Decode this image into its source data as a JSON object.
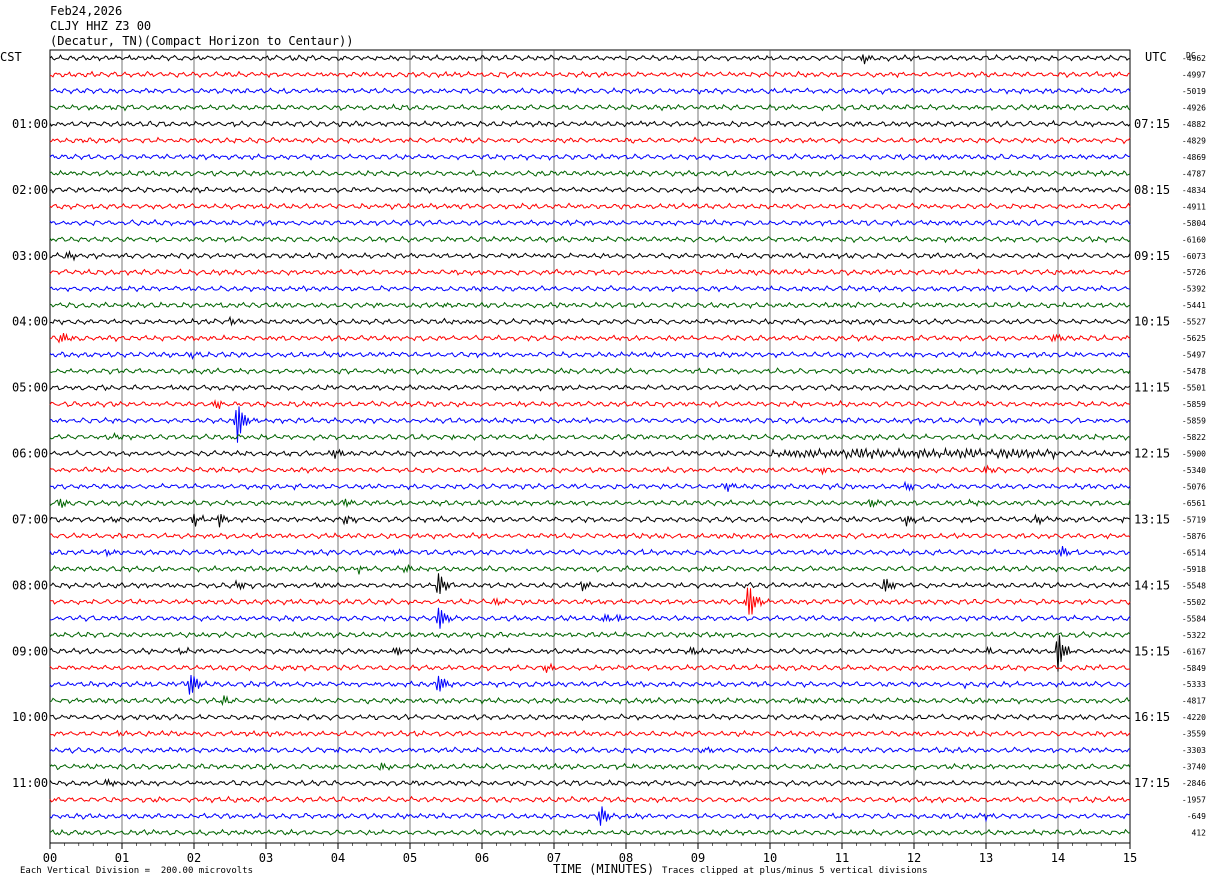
{
  "header": {
    "date": "Feb24,2026",
    "station": "CLJY HHZ Z3 00",
    "location": "(Decatur, TN)(Compact Horizon to Centaur))"
  },
  "chart_data": {
    "type": "line",
    "left_label": "CST",
    "right_label": "UTC",
    "dc_label": "DC",
    "left_times": [
      "01:00",
      "02:00",
      "03:00",
      "04:00",
      "05:00",
      "06:00",
      "07:00",
      "08:00",
      "09:00",
      "10:00",
      "11:00"
    ],
    "right_times": [
      "07:15",
      "08:15",
      "09:15",
      "10:15",
      "11:15",
      "12:15",
      "13:15",
      "14:15",
      "15:15",
      "16:15",
      "17:15"
    ],
    "x_ticks": [
      "00",
      "01",
      "02",
      "03",
      "04",
      "05",
      "06",
      "07",
      "08",
      "09",
      "10",
      "11",
      "12",
      "13",
      "14",
      "15"
    ],
    "xlabel": "TIME (MINUTES)",
    "xlim": [
      0,
      15
    ],
    "trace_colors": [
      "#000000",
      "#ff0000",
      "#0000ff",
      "#006400"
    ],
    "dc_offsets": [
      "-4962",
      "-4997",
      "-5019",
      "-4926",
      "-4882",
      "-4829",
      "-4869",
      "-4787",
      "-4834",
      "-4911",
      "-5804",
      "-6160",
      "-6073",
      "-5726",
      "-5392",
      "-5441",
      "-5527",
      "-5625",
      "-5497",
      "-5478",
      "-5501",
      "-5859",
      "-5859",
      "-5822",
      "-5900",
      "-5340",
      "-5076",
      "-6561",
      "-5719",
      "-5876",
      "-6514",
      "-5918",
      "-5548",
      "-5502",
      "-5584",
      "-5322",
      "-6167",
      "-5849",
      "-5333",
      "-4817",
      "-4220",
      "-3559",
      "-3303",
      "-3740",
      "-2846",
      "-1957",
      "-649",
      "412"
    ],
    "events": [
      {
        "trace": 0,
        "minute": 11.3,
        "amp": 5
      },
      {
        "trace": 0,
        "minute": 8.0,
        "amp": 4
      },
      {
        "trace": 12,
        "minute": 0.25,
        "amp": 5
      },
      {
        "trace": 15,
        "minute": 5.5,
        "amp": 5
      },
      {
        "trace": 16,
        "minute": 2.5,
        "amp": 4
      },
      {
        "trace": 17,
        "minute": 0.15,
        "amp": 7
      },
      {
        "trace": 17,
        "minute": 13.95,
        "amp": 5
      },
      {
        "trace": 18,
        "minute": 1.95,
        "amp": 4
      },
      {
        "trace": 21,
        "minute": 2.3,
        "amp": 5
      },
      {
        "trace": 21,
        "minute": 5.7,
        "amp": 4
      },
      {
        "trace": 21,
        "minute": 10.4,
        "amp": 5
      },
      {
        "trace": 22,
        "minute": 2.6,
        "amp": 24
      },
      {
        "trace": 22,
        "minute": 12.9,
        "amp": 5
      },
      {
        "trace": 23,
        "minute": 0.9,
        "amp": 5
      },
      {
        "trace": 23,
        "minute": 5.6,
        "amp": 5
      },
      {
        "trace": 23,
        "minute": 14.5,
        "amp": 5
      },
      {
        "trace": 24,
        "minute": 3.5,
        "amp": 5
      },
      {
        "trace": 24,
        "minute": 3.95,
        "amp": 10
      },
      {
        "trace": 25,
        "minute": 5.9,
        "amp": 6
      },
      {
        "trace": 25,
        "minute": 10.7,
        "amp": 7
      },
      {
        "trace": 25,
        "minute": 13.0,
        "amp": 6
      },
      {
        "trace": 26,
        "minute": 3.4,
        "amp": 5
      },
      {
        "trace": 26,
        "minute": 9.4,
        "amp": 5
      },
      {
        "trace": 26,
        "minute": 11.9,
        "amp": 5
      },
      {
        "trace": 27,
        "minute": 0.15,
        "amp": 6
      },
      {
        "trace": 27,
        "minute": 4.1,
        "amp": 6
      },
      {
        "trace": 27,
        "minute": 11.4,
        "amp": 5
      },
      {
        "trace": 27,
        "minute": 12.8,
        "amp": 5
      },
      {
        "trace": 27,
        "minute": 15.0,
        "amp": 6
      },
      {
        "trace": 28,
        "minute": 0.9,
        "amp": 6
      },
      {
        "trace": 28,
        "minute": 2.0,
        "amp": 7
      },
      {
        "trace": 28,
        "minute": 2.35,
        "amp": 7
      },
      {
        "trace": 28,
        "minute": 4.1,
        "amp": 7
      },
      {
        "trace": 28,
        "minute": 5.8,
        "amp": 6
      },
      {
        "trace": 28,
        "minute": 11.9,
        "amp": 8
      },
      {
        "trace": 28,
        "minute": 12.7,
        "amp": 7
      },
      {
        "trace": 28,
        "minute": 13.7,
        "amp": 6
      },
      {
        "trace": 28,
        "minute": 14.9,
        "amp": 6
      },
      {
        "trace": 29,
        "minute": 5.9,
        "amp": 4
      },
      {
        "trace": 30,
        "minute": 0.8,
        "amp": 5
      },
      {
        "trace": 30,
        "minute": 4.8,
        "amp": 4
      },
      {
        "trace": 30,
        "minute": 8.2,
        "amp": 5
      },
      {
        "trace": 30,
        "minute": 14.05,
        "amp": 8
      },
      {
        "trace": 31,
        "minute": 4.3,
        "amp": 4
      },
      {
        "trace": 31,
        "minute": 4.95,
        "amp": 4
      },
      {
        "trace": 32,
        "minute": 2.6,
        "amp": 5
      },
      {
        "trace": 32,
        "minute": 3.7,
        "amp": 5
      },
      {
        "trace": 32,
        "minute": 5.4,
        "amp": 30
      },
      {
        "trace": 32,
        "minute": 7.4,
        "amp": 7
      },
      {
        "trace": 32,
        "minute": 11.6,
        "amp": 10
      },
      {
        "trace": 33,
        "minute": 6.2,
        "amp": 6
      },
      {
        "trace": 33,
        "minute": 9.7,
        "amp": 30
      },
      {
        "trace": 34,
        "minute": 5.4,
        "amp": 30
      },
      {
        "trace": 34,
        "minute": 7.7,
        "amp": 12
      },
      {
        "trace": 34,
        "minute": 7.9,
        "amp": 25
      },
      {
        "trace": 36,
        "minute": 1.8,
        "amp": 5
      },
      {
        "trace": 36,
        "minute": 4.8,
        "amp": 5
      },
      {
        "trace": 36,
        "minute": 8.9,
        "amp": 5
      },
      {
        "trace": 36,
        "minute": 13.0,
        "amp": 5
      },
      {
        "trace": 36,
        "minute": 14.0,
        "amp": 25
      },
      {
        "trace": 37,
        "minute": 3.3,
        "amp": 4
      },
      {
        "trace": 37,
        "minute": 6.9,
        "amp": 4
      },
      {
        "trace": 38,
        "minute": 1.95,
        "amp": 18
      },
      {
        "trace": 38,
        "minute": 5.4,
        "amp": 25
      },
      {
        "trace": 38,
        "minute": 12.7,
        "amp": 4
      },
      {
        "trace": 39,
        "minute": 2.4,
        "amp": 5
      },
      {
        "trace": 39,
        "minute": 10.4,
        "amp": 14
      },
      {
        "trace": 39,
        "minute": 14.7,
        "amp": 5
      },
      {
        "trace": 41,
        "minute": 0.95,
        "amp": 4
      },
      {
        "trace": 42,
        "minute": 3.5,
        "amp": 5
      },
      {
        "trace": 42,
        "minute": 3.95,
        "amp": 4
      },
      {
        "trace": 42,
        "minute": 9.1,
        "amp": 4
      },
      {
        "trace": 43,
        "minute": 4.6,
        "amp": 4
      },
      {
        "trace": 43,
        "minute": 8.1,
        "amp": 4
      },
      {
        "trace": 44,
        "minute": 0.8,
        "amp": 7
      },
      {
        "trace": 44,
        "minute": 3.6,
        "amp": 6
      },
      {
        "trace": 44,
        "minute": 10.4,
        "amp": 4
      },
      {
        "trace": 45,
        "minute": 1.1,
        "amp": 4
      },
      {
        "trace": 45,
        "minute": 12.4,
        "amp": 6
      },
      {
        "trace": 46,
        "minute": 7.65,
        "amp": 25
      },
      {
        "trace": 46,
        "minute": 13.0,
        "amp": 4
      },
      {
        "trace": 47,
        "minute": 5.8,
        "amp": 5
      },
      {
        "trace": 47,
        "minute": 14.6,
        "amp": 7
      }
    ],
    "noisy_segments": [
      {
        "trace": 24,
        "from_minute": 10.0,
        "to_minute": 14.0,
        "amp": 4
      }
    ]
  },
  "footer": {
    "left": "Each Vertical Division =  200.00 microvolts",
    "right": "Traces clipped at plus/minus 5 vertical divisions"
  }
}
